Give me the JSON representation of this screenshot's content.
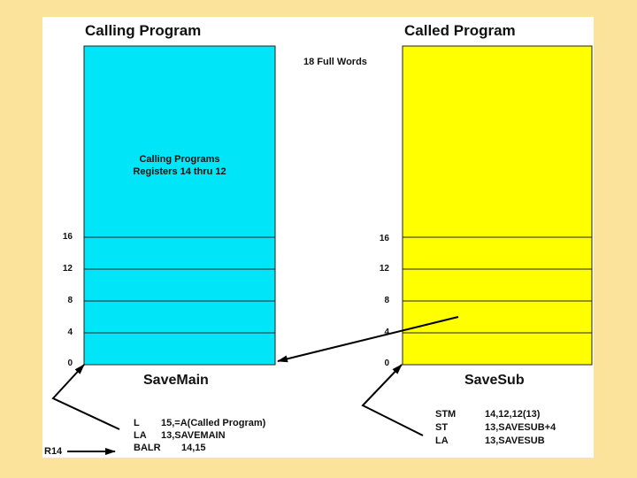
{
  "calling_program": {
    "heading": "Calling Program",
    "area_text_line1": "Calling Programs",
    "area_text_line2": "Registers 14  thru  12",
    "save_area_name": "SaveMain",
    "offsets": [
      "16",
      "12",
      "8",
      "4",
      "0"
    ],
    "fill_color": "#00e5f7",
    "code": [
      {
        "op": "L",
        "operands": "15,=A(Called Program)"
      },
      {
        "op": "LA",
        "operands": "13,SAVEMAIN"
      },
      {
        "op": "BALR",
        "operands": "14,15"
      }
    ]
  },
  "called_program": {
    "heading": "Called Program",
    "save_area_name": "SaveSub",
    "offsets": [
      "16",
      "12",
      "8",
      "4",
      "0"
    ],
    "fill_color": "#ffff00",
    "code": [
      {
        "op": "STM",
        "operands": "14,12,12(13)"
      },
      {
        "op": "ST",
        "operands": "13,SAVESUB+4"
      },
      {
        "op": "LA",
        "operands": "13,SAVESUB"
      }
    ]
  },
  "size_note": "18 Full Words",
  "register_label": "R14"
}
